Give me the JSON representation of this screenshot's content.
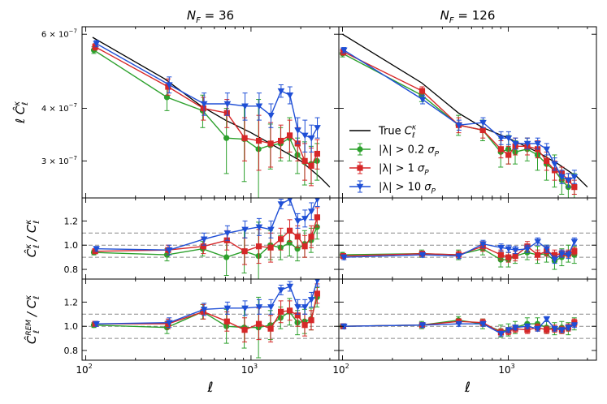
{
  "chart_data": {
    "type": "line",
    "titles": [
      "N_F = 36",
      "N_F = 126"
    ],
    "columns": [
      {
        "title_var": "N",
        "title_sub": "F",
        "title_rest": " = 36"
      },
      {
        "title_var": "N",
        "title_sub": "F",
        "title_rest": " = 126"
      }
    ],
    "xlabel": "ℓ",
    "x_scale": "log",
    "xlim": [
      95,
      3400
    ],
    "xticks": [
      {
        "value": 100,
        "base": "10",
        "exp": "2"
      },
      {
        "value": 1000,
        "base": "10",
        "exp": "3"
      }
    ],
    "rows": [
      {
        "ylabel": "ℓ Ĉ_ℓ^κ",
        "y_scale": "log",
        "ylim": [
          2.45e-07,
          6.25e-07
        ],
        "yticks": [
          {
            "value": 6e-07,
            "mant": "6 × 10",
            "exp": "−7"
          },
          {
            "value": 4e-07,
            "mant": "4 × 10",
            "exp": "−7"
          },
          {
            "value": 3e-07,
            "mant": "3 × 10",
            "exp": "−7"
          }
        ]
      },
      {
        "ylabel": "Ĉ_ℓ^κ / C_ℓ^κ",
        "y_scale": "linear",
        "ylim": [
          0.72,
          1.39
        ],
        "yticks": [
          {
            "value": 0.8,
            "label": "0.8"
          },
          {
            "value": 1.0,
            "label": "1.0"
          },
          {
            "value": 1.2,
            "label": "1.2"
          }
        ],
        "reference_lines": [
          0.9,
          1.0,
          1.1
        ]
      },
      {
        "ylabel": "Ĉ_ℓ^REM / C_ℓ^κ",
        "y_scale": "linear",
        "ylim": [
          0.72,
          1.39
        ],
        "yticks": [
          {
            "value": 0.8,
            "label": "0.8"
          },
          {
            "value": 1.0,
            "label": "1.0"
          },
          {
            "value": 1.2,
            "label": "1.2"
          }
        ],
        "reference_lines": [
          0.9,
          1.0,
          1.1
        ]
      }
    ],
    "colors": {
      "green": "#2ca02c",
      "red": "#d62728",
      "blue": "#1f4fd6",
      "black": "#000000",
      "grid": "#8a8a8a"
    },
    "legend": {
      "location": "right, middle of top-right panel",
      "entries": [
        {
          "series": "true",
          "text": "True C_ℓ^κ",
          "parts": [
            "True ",
            "C",
            "ℓ",
            "κ",
            ""
          ]
        },
        {
          "series": "green",
          "text": "|λ| > 0.2 σ_P",
          "parts": [
            "|λ| > 0.2 ",
            "σ",
            "P",
            "",
            ""
          ]
        },
        {
          "series": "red",
          "text": "|λ| > 1 σ_P",
          "parts": [
            "|λ| > 1 ",
            "σ",
            "P",
            "",
            ""
          ]
        },
        {
          "series": "blue",
          "text": "|λ| > 10 σ_P",
          "parts": [
            "|λ| > 10 ",
            "σ",
            "P",
            "",
            ""
          ]
        }
      ]
    },
    "panels": [
      {
        "true": {
          "x": [
            110,
            300,
            500,
            700,
            1000,
            1500,
            2000,
            2600,
            3000
          ],
          "y": [
            5.9e-07,
            4.7e-07,
            4.05e-07,
            3.75e-07,
            3.5e-07,
            3.2e-07,
            3e-07,
            2.75e-07,
            2.6e-07
          ]
        },
        "green": {
          "x": [
            112,
            310,
            510,
            710,
            910,
            1110,
            1310,
            1510,
            1710,
            1910,
            2110,
            2310,
            2510
          ],
          "y": [
            5.5e-07,
            4.25e-07,
            3.95e-07,
            3.4e-07,
            3.38e-07,
            3.2e-07,
            3.27e-07,
            3.3e-07,
            3.4e-07,
            3.1e-07,
            2.98e-07,
            2.95e-07,
            3e-07
          ],
          "err": [
            1e-08,
            3e-08,
            3.5e-08,
            6e-08,
            7e-08,
            1e-07,
            4e-08,
            3e-08,
            4e-08,
            3e-08,
            3.5e-08,
            3e-08,
            3e-08
          ]
        },
        "red": {
          "x": [
            114,
            315,
            515,
            715,
            915,
            1115,
            1315,
            1515,
            1715,
            1915,
            2115,
            2315,
            2515
          ],
          "y": [
            5.6e-07,
            4.5e-07,
            4e-07,
            3.9e-07,
            3.4e-07,
            3.35e-07,
            3.3e-07,
            3.35e-07,
            3.45e-07,
            3.3e-07,
            3e-07,
            2.92e-07,
            3.12e-07
          ],
          "err": [
            1e-08,
            2e-08,
            2.5e-08,
            3e-08,
            4e-08,
            5e-08,
            4e-08,
            3e-08,
            3e-08,
            3e-08,
            3e-08,
            3e-08,
            2.5e-08
          ]
        },
        "blue": {
          "x": [
            116,
            320,
            520,
            720,
            920,
            1120,
            1320,
            1520,
            1720,
            1920,
            2120,
            2320,
            2520
          ],
          "y": [
            5.7e-07,
            4.55e-07,
            4.1e-07,
            4.1e-07,
            4.05e-07,
            4.05e-07,
            3.85e-07,
            4.4e-07,
            4.3e-07,
            3.55e-07,
            3.45e-07,
            3.4e-07,
            3.6e-07
          ],
          "err": [
            1e-08,
            2e-08,
            2.5e-08,
            2.5e-08,
            3e-08,
            3e-08,
            2.5e-08,
            1.5e-08,
            2e-08,
            2.5e-08,
            3e-08,
            2.5e-08,
            2e-08
          ]
        }
      },
      {
        "true": {
          "x": [
            100,
            300,
            500,
            700,
            1000,
            1500,
            2000,
            2600,
            3000
          ],
          "y": [
            6e-07,
            4.6e-07,
            3.9e-07,
            3.6e-07,
            3.4e-07,
            3.15e-07,
            2.95e-07,
            2.75e-07,
            2.6e-07
          ]
        },
        "green": {
          "x": [
            100,
            300,
            500,
            700,
            900,
            1000,
            1100,
            1300,
            1500,
            1700,
            1900,
            2100,
            2300,
            2500
          ],
          "y": [
            5.4e-07,
            4.3e-07,
            3.65e-07,
            3.55e-07,
            3.15e-07,
            3.2e-07,
            3.15e-07,
            3.2e-07,
            3.1e-07,
            2.95e-07,
            2.85e-07,
            2.7e-07,
            2.6e-07,
            2.6e-07
          ],
          "err": [
            1e-08,
            1.5e-08,
            2e-08,
            2e-08,
            2.5e-08,
            2.5e-08,
            2e-08,
            2e-08,
            2.5e-08,
            2.5e-08,
            2.5e-08,
            2e-08,
            2e-08,
            2e-08
          ]
        },
        "red": {
          "x": [
            101,
            302,
            502,
            702,
            902,
            1002,
            1102,
            1302,
            1502,
            1702,
            1902,
            2102,
            2302,
            2502
          ],
          "y": [
            5.45e-07,
            4.4e-07,
            3.65e-07,
            3.55e-07,
            3.2e-07,
            3.1e-07,
            3.25e-07,
            3.25e-07,
            3.2e-07,
            3e-07,
            2.85e-07,
            2.8e-07,
            2.7e-07,
            2.6e-07
          ],
          "err": [
            1e-08,
            1e-08,
            1.5e-08,
            1.5e-08,
            1.5e-08,
            1.5e-08,
            1.5e-08,
            1.5e-08,
            1.5e-08,
            1.5e-08,
            1.5e-08,
            1e-08,
            1e-08,
            1e-08
          ]
        },
        "blue": {
          "x": [
            102,
            304,
            504,
            704,
            904,
            1004,
            1104,
            1304,
            1504,
            1704,
            1904,
            2104,
            2304,
            2504
          ],
          "y": [
            5.5e-07,
            4.2e-07,
            3.65e-07,
            3.7e-07,
            3.4e-07,
            3.4e-07,
            3.3e-07,
            3.3e-07,
            3.3e-07,
            3.2e-07,
            2.95e-07,
            2.75e-07,
            2.7e-07,
            2.75e-07
          ],
          "err": [
            8e-09,
            1e-08,
            1e-08,
            1e-08,
            1.2e-08,
            1.2e-08,
            1e-08,
            1e-08,
            1e-08,
            1e-08,
            1e-08,
            1e-08,
            1e-08,
            1e-08
          ]
        }
      },
      {
        "green": {
          "x": [
            112,
            310,
            510,
            710,
            910,
            1110,
            1310,
            1510,
            1710,
            1910,
            2110,
            2310,
            2510
          ],
          "y": [
            0.94,
            0.92,
            0.97,
            0.9,
            0.95,
            0.91,
            1.0,
            0.98,
            1.02,
            0.97,
            1.01,
            1.04,
            1.15
          ],
          "err": [
            0.02,
            0.05,
            0.06,
            0.15,
            0.18,
            0.28,
            0.12,
            0.1,
            0.11,
            0.1,
            0.11,
            0.1,
            0.1
          ]
        },
        "red": {
          "x": [
            114,
            315,
            515,
            715,
            915,
            1115,
            1315,
            1515,
            1715,
            1915,
            2115,
            2315,
            2515
          ],
          "y": [
            0.95,
            0.96,
            0.99,
            1.04,
            0.95,
            0.99,
            0.98,
            1.05,
            1.12,
            1.07,
            0.99,
            1.07,
            1.23
          ],
          "err": [
            0.02,
            0.04,
            0.06,
            0.08,
            0.11,
            0.14,
            0.12,
            0.09,
            0.09,
            0.09,
            0.09,
            0.09,
            0.08
          ]
        },
        "blue": {
          "x": [
            116,
            320,
            520,
            720,
            920,
            1120,
            1320,
            1520,
            1720,
            1920,
            2120,
            2320,
            2520
          ],
          "y": [
            0.97,
            0.96,
            1.05,
            1.1,
            1.13,
            1.15,
            1.13,
            1.34,
            1.38,
            1.2,
            1.22,
            1.28,
            1.38
          ],
          "err": [
            0.02,
            0.04,
            0.05,
            0.06,
            0.07,
            0.07,
            0.07,
            0.04,
            0.05,
            0.06,
            0.07,
            0.07,
            0.06
          ]
        }
      },
      {
        "green": {
          "x": [
            100,
            300,
            500,
            700,
            900,
            1000,
            1100,
            1300,
            1500,
            1700,
            1900,
            2100,
            2300,
            2500
          ],
          "y": [
            0.92,
            0.93,
            0.92,
            0.97,
            0.88,
            0.88,
            0.91,
            0.94,
            0.92,
            0.93,
            0.87,
            0.9,
            0.93,
            0.92
          ],
          "err": [
            0.02,
            0.03,
            0.04,
            0.05,
            0.06,
            0.06,
            0.06,
            0.06,
            0.07,
            0.07,
            0.07,
            0.07,
            0.07,
            0.07
          ]
        },
        "red": {
          "x": [
            101,
            302,
            502,
            702,
            902,
            1002,
            1102,
            1302,
            1502,
            1702,
            1902,
            2102,
            2302,
            2502
          ],
          "y": [
            0.91,
            0.93,
            0.92,
            0.99,
            0.92,
            0.9,
            0.91,
            0.99,
            0.92,
            0.95,
            0.92,
            0.93,
            0.93,
            0.95
          ],
          "err": [
            0.02,
            0.02,
            0.03,
            0.04,
            0.04,
            0.04,
            0.04,
            0.04,
            0.04,
            0.04,
            0.04,
            0.03,
            0.03,
            0.03
          ]
        },
        "blue": {
          "x": [
            102,
            304,
            504,
            704,
            904,
            1004,
            1104,
            1304,
            1504,
            1704,
            1904,
            2104,
            2304,
            2504
          ],
          "y": [
            0.9,
            0.92,
            0.91,
            1.01,
            0.98,
            0.97,
            0.96,
            0.97,
            1.03,
            0.97,
            0.88,
            0.93,
            0.92,
            1.03
          ],
          "err": [
            0.02,
            0.02,
            0.02,
            0.03,
            0.03,
            0.03,
            0.03,
            0.03,
            0.03,
            0.03,
            0.03,
            0.03,
            0.03,
            0.03
          ]
        }
      },
      {
        "green": {
          "x": [
            112,
            310,
            510,
            710,
            910,
            1110,
            1310,
            1510,
            1710,
            1910,
            2110,
            2310,
            2510
          ],
          "y": [
            1.01,
            0.99,
            1.12,
            1.0,
            0.99,
            0.99,
            1.01,
            1.07,
            1.12,
            1.03,
            1.04,
            1.06,
            1.24
          ],
          "err": [
            0.02,
            0.05,
            0.06,
            0.14,
            0.17,
            0.25,
            0.12,
            0.09,
            0.11,
            0.1,
            0.1,
            0.09,
            0.08
          ]
        },
        "red": {
          "x": [
            114,
            315,
            515,
            715,
            915,
            1115,
            1315,
            1515,
            1715,
            1915,
            2115,
            2315,
            2515
          ],
          "y": [
            1.02,
            1.02,
            1.12,
            1.04,
            0.97,
            1.02,
            0.98,
            1.12,
            1.13,
            1.09,
            1.01,
            1.05,
            1.27
          ],
          "err": [
            0.02,
            0.04,
            0.06,
            0.08,
            0.1,
            0.13,
            0.11,
            0.09,
            0.08,
            0.09,
            0.09,
            0.08,
            0.08
          ]
        },
        "blue": {
          "x": [
            116,
            320,
            520,
            720,
            920,
            1120,
            1320,
            1520,
            1720,
            1920,
            2120,
            2320,
            2520
          ],
          "y": [
            1.02,
            1.03,
            1.14,
            1.15,
            1.15,
            1.16,
            1.16,
            1.3,
            1.33,
            1.16,
            1.16,
            1.22,
            1.38
          ],
          "err": [
            0.02,
            0.04,
            0.05,
            0.05,
            0.06,
            0.06,
            0.06,
            0.04,
            0.04,
            0.06,
            0.06,
            0.06,
            0.05
          ]
        }
      },
      {
        "green": {
          "x": [
            100,
            300,
            500,
            700,
            900,
            1000,
            1100,
            1300,
            1500,
            1700,
            1900,
            2100,
            2300,
            2500
          ],
          "y": [
            1.0,
            1.01,
            1.05,
            1.02,
            0.96,
            0.97,
            0.99,
            1.02,
            1.02,
            0.99,
            0.98,
            0.99,
            0.98,
            1.02
          ],
          "err": [
            0.02,
            0.03,
            0.03,
            0.04,
            0.05,
            0.05,
            0.05,
            0.05,
            0.05,
            0.05,
            0.05,
            0.05,
            0.05,
            0.05
          ]
        },
        "red": {
          "x": [
            101,
            302,
            502,
            702,
            902,
            1002,
            1102,
            1302,
            1502,
            1702,
            1902,
            2102,
            2302,
            2502
          ],
          "y": [
            1.0,
            1.01,
            1.04,
            1.03,
            0.95,
            0.96,
            0.98,
            0.97,
            0.99,
            0.97,
            0.98,
            0.97,
            0.99,
            1.03
          ],
          "err": [
            0.02,
            0.02,
            0.02,
            0.03,
            0.03,
            0.03,
            0.03,
            0.03,
            0.03,
            0.03,
            0.03,
            0.03,
            0.03,
            0.03
          ]
        },
        "blue": {
          "x": [
            102,
            304,
            504,
            704,
            904,
            1004,
            1104,
            1304,
            1504,
            1704,
            1904,
            2104,
            2304,
            2504
          ],
          "y": [
            1.0,
            1.01,
            1.02,
            1.02,
            0.94,
            0.97,
            0.99,
            1.0,
            0.98,
            1.06,
            0.98,
            0.97,
            0.99,
            1.01
          ],
          "err": [
            0.02,
            0.02,
            0.02,
            0.02,
            0.02,
            0.02,
            0.02,
            0.02,
            0.02,
            0.02,
            0.02,
            0.02,
            0.02,
            0.02
          ]
        }
      }
    ]
  }
}
